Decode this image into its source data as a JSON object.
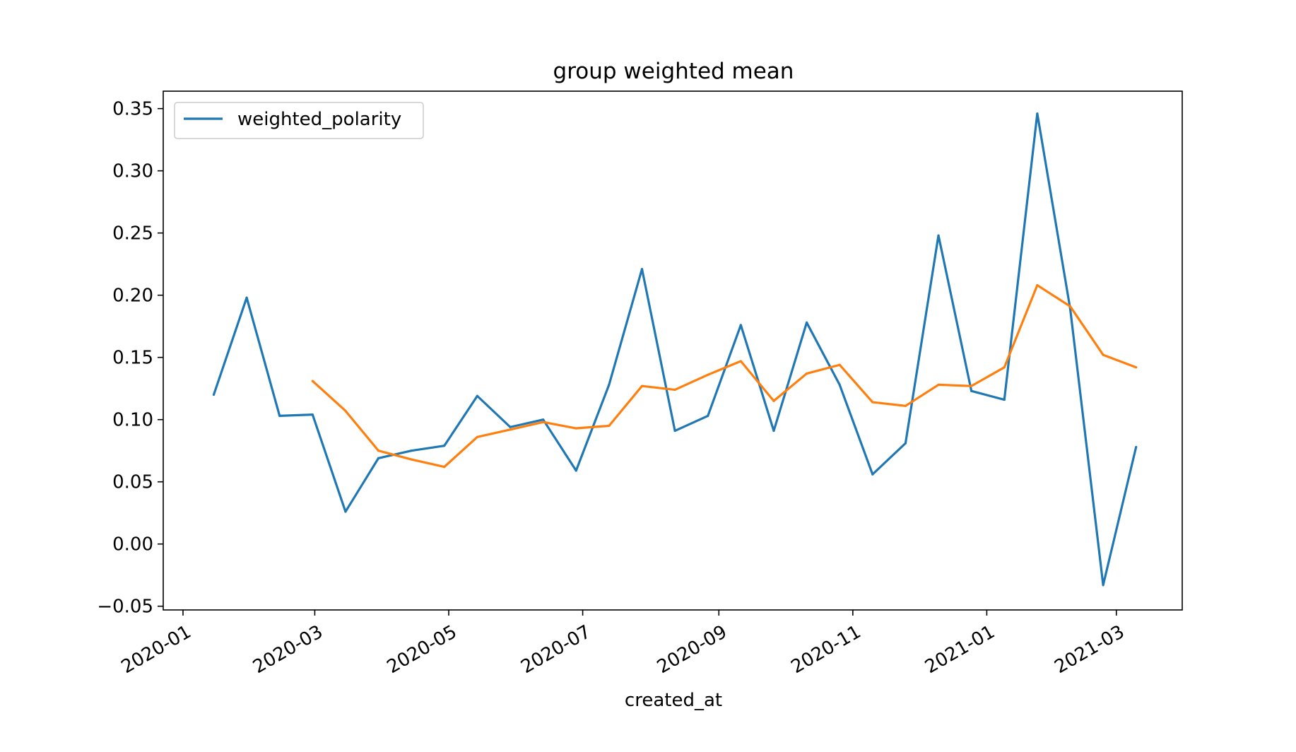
{
  "chart_data": {
    "type": "line",
    "title": "group weighted mean",
    "xlabel": "created_at",
    "ylabel": "",
    "xlim": [
      "2019-12-23",
      "2021-03-31"
    ],
    "ylim": [
      -0.053,
      0.364
    ],
    "y_ticks": [
      -0.05,
      0.0,
      0.05,
      0.1,
      0.15,
      0.2,
      0.25,
      0.3,
      0.35
    ],
    "y_tick_labels": [
      "−0.05",
      "0.00",
      "0.05",
      "0.10",
      "0.15",
      "0.20",
      "0.25",
      "0.30",
      "0.35"
    ],
    "x_ticks": [
      "2020-01-01",
      "2020-03-01",
      "2020-05-01",
      "2020-07-01",
      "2020-09-01",
      "2020-11-01",
      "2021-01-01",
      "2021-03-01"
    ],
    "x_tick_labels": [
      "2020-01",
      "2020-03",
      "2020-05",
      "2020-07",
      "2020-09",
      "2020-11",
      "2021-01",
      "2021-03"
    ],
    "grid": false,
    "legend": {
      "placement": "top-left",
      "entries": [
        "weighted_polarity"
      ]
    },
    "series": [
      {
        "name": "weighted_polarity",
        "color": "#1f77b4",
        "x": [
          "2020-01-15",
          "2020-01-30",
          "2020-02-14",
          "2020-02-29",
          "2020-03-15",
          "2020-03-30",
          "2020-04-14",
          "2020-04-29",
          "2020-05-14",
          "2020-05-29",
          "2020-06-13",
          "2020-06-28",
          "2020-07-13",
          "2020-07-28",
          "2020-08-12",
          "2020-08-27",
          "2020-09-11",
          "2020-09-26",
          "2020-10-11",
          "2020-10-26",
          "2020-11-10",
          "2020-11-25",
          "2020-12-10",
          "2020-12-25",
          "2021-01-09",
          "2021-01-24",
          "2021-02-08",
          "2021-02-23",
          "2021-03-10"
        ],
        "y": [
          0.12,
          0.198,
          0.103,
          0.104,
          0.026,
          0.069,
          0.075,
          0.079,
          0.119,
          0.094,
          0.1,
          0.059,
          0.128,
          0.221,
          0.091,
          0.103,
          0.176,
          0.091,
          0.178,
          0.128,
          0.056,
          0.081,
          0.248,
          0.123,
          0.116,
          0.346,
          0.189,
          -0.033,
          0.078
        ]
      },
      {
        "color": "#ff7f0e",
        "x": [
          "2020-02-29",
          "2020-03-15",
          "2020-03-30",
          "2020-04-14",
          "2020-04-29",
          "2020-05-14",
          "2020-05-29",
          "2020-06-13",
          "2020-06-28",
          "2020-07-13",
          "2020-07-28",
          "2020-08-12",
          "2020-08-27",
          "2020-09-11",
          "2020-09-26",
          "2020-10-11",
          "2020-10-26",
          "2020-11-10",
          "2020-11-25",
          "2020-12-10",
          "2020-12-25",
          "2021-01-09",
          "2021-01-24",
          "2021-02-08",
          "2021-02-23",
          "2021-03-10"
        ],
        "y": [
          0.131,
          0.107,
          0.075,
          0.068,
          0.062,
          0.086,
          0.092,
          0.098,
          0.093,
          0.095,
          0.127,
          0.124,
          0.136,
          0.147,
          0.115,
          0.137,
          0.144,
          0.114,
          0.111,
          0.128,
          0.127,
          0.142,
          0.208,
          0.191,
          0.152,
          0.142
        ]
      }
    ]
  }
}
